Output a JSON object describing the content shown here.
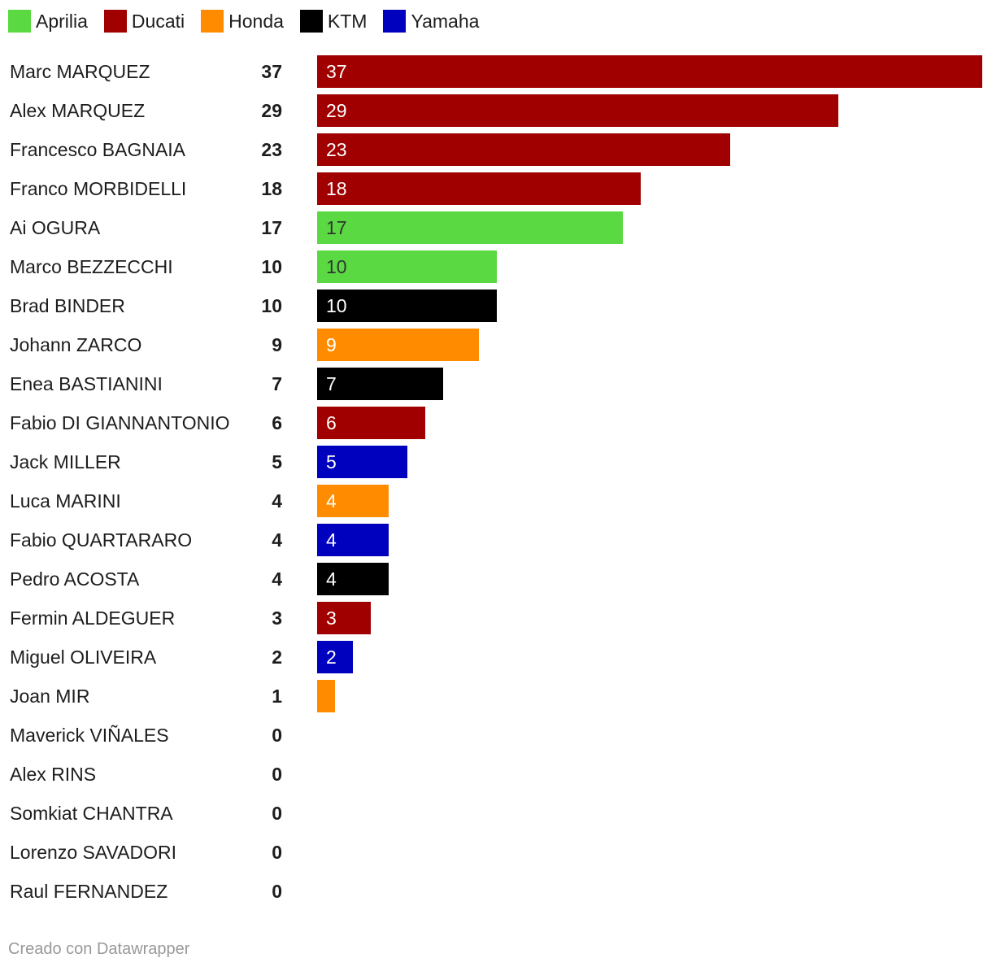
{
  "colors": {
    "Aprilia": "#5ad943",
    "Ducati": "#a00000",
    "Honda": "#ff8c00",
    "KTM": "#000000",
    "Yamaha": "#0000bf"
  },
  "chart_data": {
    "type": "bar",
    "orientation": "horizontal",
    "legend": [
      "Aprilia",
      "Ducati",
      "Honda",
      "KTM",
      "Yamaha"
    ],
    "legend_placement": "top-left",
    "categories": [
      "Marc MARQUEZ",
      "Alex MARQUEZ",
      "Francesco BAGNAIA",
      "Franco MORBIDELLI",
      "Ai OGURA",
      "Marco BEZZECCHI",
      "Brad BINDER",
      "Johann ZARCO",
      "Enea BASTIANINI",
      "Fabio DI GIANNANTONIO",
      "Jack MILLER",
      "Luca MARINI",
      "Fabio QUARTARARO",
      "Pedro ACOSTA",
      "Fermin ALDEGUER",
      "Miguel OLIVEIRA",
      "Joan MIR",
      "Maverick VIÑALES",
      "Alex RINS",
      "Somkiat CHANTRA",
      "Lorenzo SAVADORI",
      "Raul FERNANDEZ"
    ],
    "values": [
      37,
      29,
      23,
      18,
      17,
      10,
      10,
      9,
      7,
      6,
      5,
      4,
      4,
      4,
      3,
      2,
      1,
      0,
      0,
      0,
      0,
      0
    ],
    "brands": [
      "Ducati",
      "Ducati",
      "Ducati",
      "Ducati",
      "Aprilia",
      "Aprilia",
      "KTM",
      "Honda",
      "KTM",
      "Ducati",
      "Yamaha",
      "Honda",
      "Yamaha",
      "KTM",
      "Ducati",
      "Yamaha",
      "Honda",
      "Yamaha",
      "Yamaha",
      "Honda",
      "Yamaha",
      "Aprilia"
    ],
    "xlim": [
      0,
      37
    ]
  },
  "footer": "Creado con Datawrapper"
}
